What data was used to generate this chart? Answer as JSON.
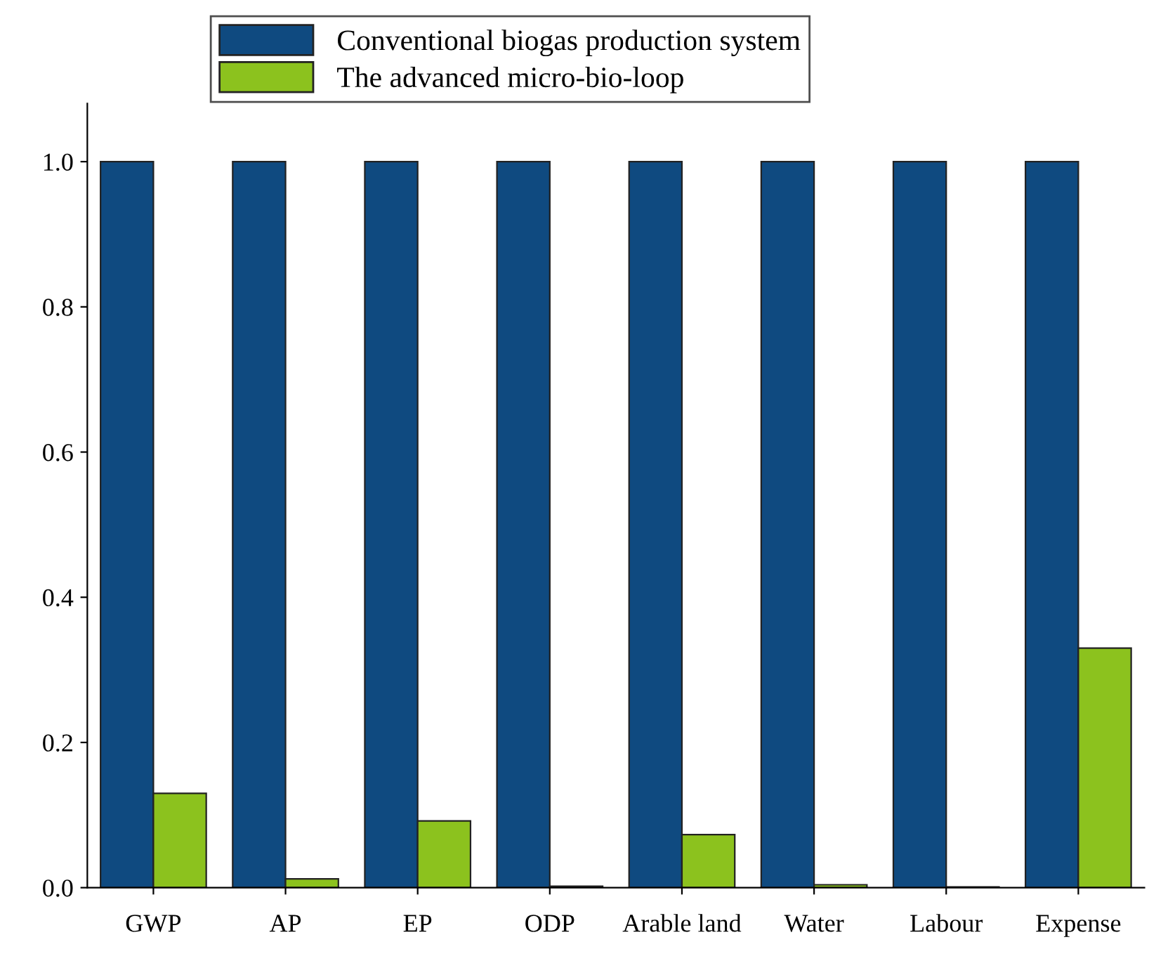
{
  "chart_data": {
    "type": "bar",
    "categories": [
      "GWP",
      "AP",
      "EP",
      "ODP",
      "Arable land",
      "Water",
      "Labour",
      "Expense"
    ],
    "series": [
      {
        "name": "Conventional biogas production system",
        "color": "#0f4a80",
        "values": [
          1.0,
          1.0,
          1.0,
          1.0,
          1.0,
          1.0,
          1.0,
          1.0
        ]
      },
      {
        "name": "The advanced micro-bio-loop",
        "color": "#8cc21e",
        "values": [
          0.13,
          0.012,
          0.092,
          0.002,
          0.073,
          0.004,
          0.001,
          0.33
        ]
      }
    ],
    "ylim": [
      0,
      1.08
    ],
    "yticks": [
      {
        "value": 0,
        "label": "0.0"
      },
      0.2,
      0.4,
      0.6,
      0.8,
      {
        "value": 1,
        "label": "1.0"
      }
    ],
    "grid": false,
    "legend": "top"
  }
}
